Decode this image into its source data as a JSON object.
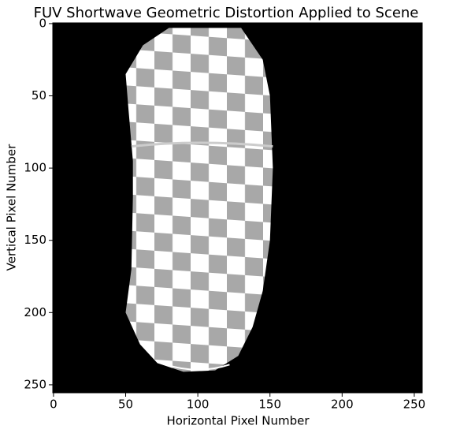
{
  "chart_data": {
    "type": "image",
    "title": "FUV Shortwave Geometric Distortion Applied to Scene",
    "x_label": "Horizontal Pixel Number",
    "y_label": "Vertical Pixel Number",
    "xlim": [
      -0.5,
      255.5
    ],
    "ylim": [
      255.5,
      -0.5
    ],
    "xticks": [
      0,
      50,
      100,
      150,
      200,
      250
    ],
    "yticks": [
      0,
      50,
      100,
      150,
      200,
      250
    ]
  }
}
